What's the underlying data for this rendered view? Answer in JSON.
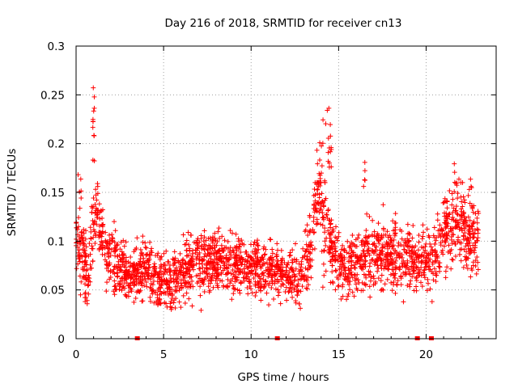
{
  "chart_data": {
    "type": "scatter",
    "title": "Day 216 of 2018, SRMTID for receiver cn13",
    "xlabel": "GPS time / hours",
    "ylabel": "SRMTID / TECUs",
    "xlim": [
      0,
      24
    ],
    "ylim": [
      0,
      0.3
    ],
    "x_ticks": [
      0,
      5,
      10,
      15,
      20
    ],
    "x_tick_labels": [
      "0",
      "5",
      "10",
      "15",
      "20"
    ],
    "y_ticks": [
      0,
      0.05,
      0.1,
      0.15,
      0.2,
      0.25,
      0.3
    ],
    "y_tick_labels": [
      "0",
      "0.05",
      "0.1",
      "0.15",
      "0.2",
      "0.25",
      "0.3"
    ],
    "grid": true,
    "marker": "plus",
    "color": "#ff0000",
    "zero_markers_x": [
      3.5,
      11.5,
      19.5,
      20.3
    ],
    "profile": [
      {
        "x": 0.0,
        "base": 0.1,
        "spread": 0.03
      },
      {
        "x": 0.5,
        "base": 0.08,
        "spread": 0.03
      },
      {
        "x": 0.7,
        "base": 0.06,
        "spread": 0.025
      },
      {
        "x": 1.0,
        "base": 0.12,
        "spread": 0.04
      },
      {
        "x": 1.3,
        "base": 0.12,
        "spread": 0.03
      },
      {
        "x": 1.7,
        "base": 0.09,
        "spread": 0.03
      },
      {
        "x": 2.5,
        "base": 0.075,
        "spread": 0.025
      },
      {
        "x": 3.0,
        "base": 0.065,
        "spread": 0.02
      },
      {
        "x": 4.0,
        "base": 0.07,
        "spread": 0.025
      },
      {
        "x": 5.0,
        "base": 0.06,
        "spread": 0.025
      },
      {
        "x": 6.0,
        "base": 0.065,
        "spread": 0.025
      },
      {
        "x": 7.0,
        "base": 0.08,
        "spread": 0.03
      },
      {
        "x": 8.0,
        "base": 0.08,
        "spread": 0.025
      },
      {
        "x": 9.0,
        "base": 0.075,
        "spread": 0.025
      },
      {
        "x": 10.0,
        "base": 0.075,
        "spread": 0.025
      },
      {
        "x": 11.0,
        "base": 0.07,
        "spread": 0.025
      },
      {
        "x": 12.0,
        "base": 0.065,
        "spread": 0.02
      },
      {
        "x": 12.8,
        "base": 0.06,
        "spread": 0.02
      },
      {
        "x": 13.3,
        "base": 0.09,
        "spread": 0.03
      },
      {
        "x": 13.8,
        "base": 0.15,
        "spread": 0.05
      },
      {
        "x": 14.3,
        "base": 0.13,
        "spread": 0.05
      },
      {
        "x": 14.7,
        "base": 0.08,
        "spread": 0.025
      },
      {
        "x": 15.5,
        "base": 0.075,
        "spread": 0.025
      },
      {
        "x": 16.5,
        "base": 0.085,
        "spread": 0.03
      },
      {
        "x": 17.5,
        "base": 0.09,
        "spread": 0.03
      },
      {
        "x": 18.5,
        "base": 0.085,
        "spread": 0.03
      },
      {
        "x": 19.5,
        "base": 0.08,
        "spread": 0.025
      },
      {
        "x": 20.3,
        "base": 0.08,
        "spread": 0.03
      },
      {
        "x": 21.0,
        "base": 0.11,
        "spread": 0.035
      },
      {
        "x": 21.8,
        "base": 0.12,
        "spread": 0.04
      },
      {
        "x": 22.5,
        "base": 0.1,
        "spread": 0.035
      },
      {
        "x": 22.9,
        "base": 0.1,
        "spread": 0.03
      }
    ],
    "spikes": [
      {
        "x_min": 0.95,
        "x_max": 1.05,
        "y_min": 0.18,
        "y_max": 0.26,
        "n": 12
      },
      {
        "x_min": 13.7,
        "x_max": 14.6,
        "y_min": 0.16,
        "y_max": 0.237,
        "n": 28
      },
      {
        "x_min": 0.1,
        "x_max": 0.3,
        "y_min": 0.13,
        "y_max": 0.17,
        "n": 5
      },
      {
        "x_min": 16.4,
        "x_max": 16.6,
        "y_min": 0.15,
        "y_max": 0.19,
        "n": 5
      },
      {
        "x_min": 21.6,
        "x_max": 21.9,
        "y_min": 0.15,
        "y_max": 0.193,
        "n": 8
      },
      {
        "x_min": 22.3,
        "x_max": 22.6,
        "y_min": 0.14,
        "y_max": 0.178,
        "n": 5
      }
    ],
    "points_per_hour": 110,
    "x_data_end": 23.0
  }
}
